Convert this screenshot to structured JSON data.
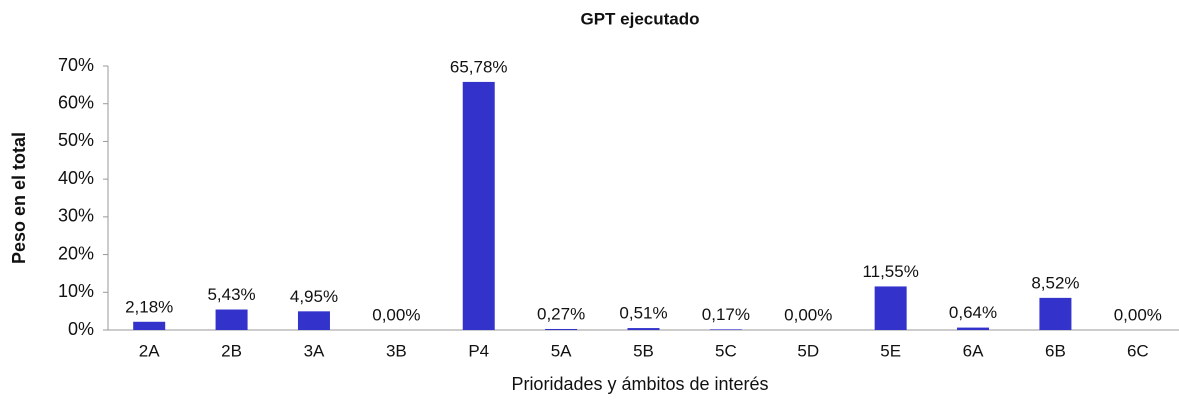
{
  "chart_data": {
    "type": "bar",
    "title": "GPT ejecutado",
    "x_label": "Prioridades y ámbitos de interés",
    "y_label": "Peso en el total",
    "categories": [
      "2A",
      "2B",
      "3A",
      "3B",
      "P4",
      "5A",
      "5B",
      "5C",
      "5D",
      "5E",
      "6A",
      "6B",
      "6C"
    ],
    "values": [
      2.18,
      5.43,
      4.95,
      0,
      65.78,
      0.27,
      0.51,
      0.17,
      0,
      11.55,
      0.64,
      8.52,
      0
    ],
    "value_labels": [
      "2,18%",
      "5,43%",
      "4,95%",
      "0,00%",
      "65,78%",
      "0,27%",
      "0,51%",
      "0,17%",
      "0,00%",
      "11,55%",
      "0,64%",
      "8,52%",
      "0,00%"
    ],
    "color": "#3333cc",
    "ylim": [
      0,
      70
    ],
    "yticks": [
      {
        "value": 0,
        "label": "0%"
      },
      {
        "value": 10,
        "label": "10%"
      },
      {
        "value": 20,
        "label": "20%"
      },
      {
        "value": 30,
        "label": "30%"
      },
      {
        "value": 40,
        "label": "40%"
      },
      {
        "value": 50,
        "label": "50%"
      },
      {
        "value": 60,
        "label": "60%"
      },
      {
        "value": 70,
        "label": "70%"
      }
    ],
    "grid": false
  }
}
